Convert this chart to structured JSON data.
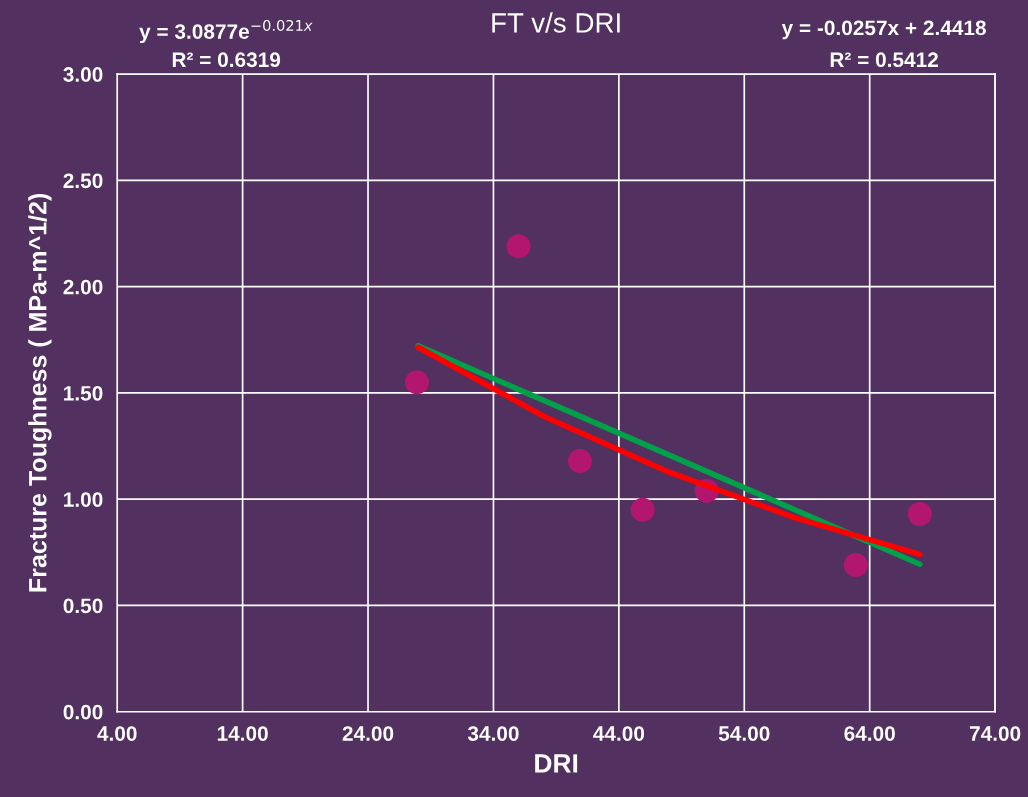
{
  "chart_data": {
    "type": "scatter",
    "title": "FT v/s DRI",
    "xlabel": "DRI",
    "ylabel": "Fracture Toughness ( MPa-m^1/2)",
    "annotations": [
      "y = 3.0877e$^{−0.021x}$",
      "R² = 0.6319",
      "y = -0.0257x + 2.4418",
      "R² = 0.5412"
    ],
    "series": [
      {
        "color": "#b3166f",
        "marker": "circle",
        "x": [
          27.9,
          36.0,
          40.9,
          45.9,
          51.0,
          62.9,
          68.0
        ],
        "values": [
          1.55,
          2.19,
          1.18,
          0.95,
          1.04,
          0.69,
          0.93
        ]
      },
      {
        "type": "line",
        "color": "#00a04a",
        "x": [
          28,
          68
        ],
        "values": [
          1.722,
          0.694
        ]
      },
      {
        "type": "line",
        "color": "#ff0000",
        "x": [
          28,
          38,
          48,
          58,
          68
        ],
        "values": [
          1.715,
          1.39,
          1.127,
          0.913,
          0.74
        ]
      }
    ],
    "xlim": [
      4,
      74
    ],
    "xticks": [
      {
        "value": 4,
        "label": "4.00"
      },
      {
        "value": 14,
        "label": "14.00"
      },
      {
        "value": 24,
        "label": "24.00"
      },
      {
        "value": 34,
        "label": "34.00"
      },
      {
        "value": 44,
        "label": "44.00"
      },
      {
        "value": 54,
        "label": "54.00"
      },
      {
        "value": 64,
        "label": "64.00"
      },
      {
        "value": 74,
        "label": "74.00"
      }
    ],
    "ylim": [
      0,
      3
    ],
    "yticks": [
      {
        "value": 0,
        "label": "0.00"
      },
      {
        "value": 0.5,
        "label": "0.50"
      },
      {
        "value": 1,
        "label": "1.00"
      },
      {
        "value": 1.5,
        "label": "1.50"
      },
      {
        "value": 2,
        "label": "2.00"
      },
      {
        "value": 2.5,
        "label": "2.50"
      },
      {
        "value": 3,
        "label": "3.00"
      }
    ],
    "grid": true
  }
}
